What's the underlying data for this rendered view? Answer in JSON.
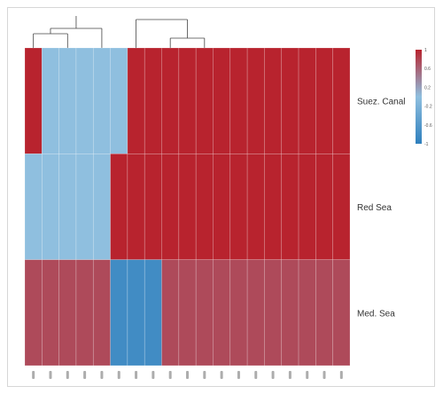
{
  "chart_data": {
    "type": "heatmap",
    "title": "",
    "xlabel": "",
    "ylabel": "",
    "rows": [
      "Suez. Canal",
      "Red Sea",
      "Med. Sea"
    ],
    "column_count": 19,
    "values": [
      [
        1,
        0,
        0,
        0,
        0,
        0,
        1,
        1,
        1,
        1,
        1,
        1,
        1,
        1,
        1,
        1,
        1,
        1,
        1
      ],
      [
        0,
        0,
        0,
        0,
        0,
        1,
        1,
        1,
        1,
        1,
        1,
        1,
        1,
        1,
        1,
        1,
        1,
        1,
        1
      ],
      [
        0.75,
        0.75,
        0.75,
        0.75,
        0.75,
        -0.8,
        -0.8,
        -0.8,
        0.75,
        0.75,
        0.75,
        0.75,
        0.75,
        0.75,
        0.75,
        0.75,
        0.75,
        0.75,
        0.75
      ]
    ],
    "color_scale": {
      "min": -1,
      "max": 1,
      "low_color": "#2e7fbd",
      "mid_color": "#8fbfdf",
      "high_color": "#b8232e",
      "ticks": [
        1,
        0.6,
        0.2,
        -0.2,
        -0.6,
        -1
      ]
    },
    "column_dendrogram": true,
    "legend_position": "top-right"
  }
}
